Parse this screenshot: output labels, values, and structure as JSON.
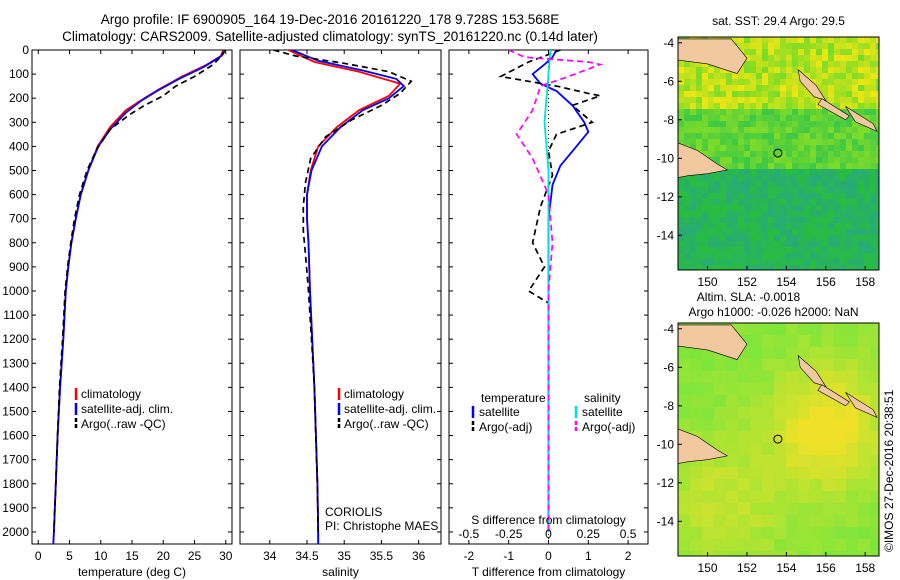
{
  "header": {
    "line1": "Argo profile: IF 6900905_164 19-Dec-2016 20161220_178 9.728S 153.568E",
    "line2": "Climatology: CARS2009. Satellite-adjusted climatology: synTS_20161220.nc (0.14d later)"
  },
  "colors": {
    "clim": "#ff0000",
    "sat": "#0000ff",
    "argo": "#000000",
    "sal_sat": "#00e0e0",
    "sal_argo": "#ff00ff"
  },
  "chart_data": [
    {
      "type": "line",
      "name": "temperature-profile",
      "xlabel": "temperature (deg C)",
      "xlim": [
        -1,
        31
      ],
      "ylim": [
        0,
        2050
      ],
      "xticks": [
        0,
        5,
        10,
        15,
        20,
        25,
        30
      ],
      "yticks": [
        0,
        100,
        200,
        300,
        400,
        500,
        600,
        700,
        800,
        900,
        1000,
        1100,
        1200,
        1300,
        1400,
        1500,
        1600,
        1700,
        1800,
        1900,
        2000
      ],
      "legend": [
        "climatology",
        "satellite-adj. clim.",
        "Argo(..raw -QC)"
      ],
      "series": [
        {
          "name": "climatology",
          "color": "#ff0000",
          "dash": false,
          "points": [
            [
              29.6,
              0
            ],
            [
              29.2,
              25
            ],
            [
              27,
              60
            ],
            [
              23,
              110
            ],
            [
              19.5,
              160
            ],
            [
              17,
              200
            ],
            [
              14,
              250
            ],
            [
              11.5,
              320
            ],
            [
              9.5,
              400
            ],
            [
              8,
              500
            ],
            [
              6.8,
              600
            ],
            [
              6,
              700
            ],
            [
              5.3,
              800
            ],
            [
              4.8,
              900
            ],
            [
              4.4,
              1000
            ],
            [
              4,
              1200
            ],
            [
              3.5,
              1400
            ],
            [
              3.1,
              1600
            ],
            [
              2.8,
              1800
            ],
            [
              2.5,
              2000
            ],
            [
              2.4,
              2050
            ]
          ]
        },
        {
          "name": "satellite-adj. clim.",
          "color": "#0000ff",
          "dash": false,
          "points": [
            [
              29.8,
              0
            ],
            [
              29.3,
              25
            ],
            [
              26.5,
              70
            ],
            [
              22.5,
              120
            ],
            [
              19,
              170
            ],
            [
              16.5,
              210
            ],
            [
              14,
              260
            ],
            [
              11.5,
              330
            ],
            [
              9.6,
              400
            ],
            [
              8,
              500
            ],
            [
              6.8,
              600
            ],
            [
              6,
              700
            ],
            [
              5.3,
              800
            ],
            [
              4.8,
              900
            ],
            [
              4.4,
              1000
            ],
            [
              4,
              1200
            ],
            [
              3.5,
              1400
            ],
            [
              3.1,
              1600
            ],
            [
              2.8,
              1800
            ],
            [
              2.5,
              2000
            ],
            [
              2.4,
              2050
            ]
          ]
        },
        {
          "name": "Argo(..raw -QC)",
          "color": "#000000",
          "dash": true,
          "points": [
            [
              29.9,
              0
            ],
            [
              29.5,
              20
            ],
            [
              28,
              60
            ],
            [
              25,
              110
            ],
            [
              22,
              150
            ],
            [
              20,
              190
            ],
            [
              17,
              230
            ],
            [
              14.5,
              270
            ],
            [
              11.5,
              330
            ],
            [
              9.4,
              410
            ],
            [
              7.8,
              500
            ],
            [
              6.6,
              600
            ],
            [
              5.8,
              700
            ],
            [
              5.2,
              800
            ],
            [
              4.7,
              900
            ],
            [
              4.3,
              1000
            ],
            [
              3.9,
              1200
            ],
            [
              3.4,
              1400
            ],
            [
              3.1,
              1600
            ],
            [
              2.8,
              1800
            ],
            [
              2.5,
              2000
            ]
          ]
        }
      ]
    },
    {
      "type": "line",
      "name": "salinity-profile",
      "xlabel": "salinity",
      "xlim": [
        33.6,
        36.3
      ],
      "ylim": [
        0,
        2050
      ],
      "xticks": [
        34,
        34.5,
        35,
        35.5,
        36
      ],
      "legend": [
        "climatology",
        "satellite-adj. clim.",
        "Argo(..raw -QC)"
      ],
      "annotation": [
        "CORIOLIS",
        "PI: Christophe MAES"
      ],
      "series": [
        {
          "name": "climatology",
          "color": "#ff0000",
          "dash": false,
          "points": [
            [
              34.25,
              0
            ],
            [
              34.6,
              50
            ],
            [
              35.2,
              90
            ],
            [
              35.75,
              140
            ],
            [
              35.6,
              190
            ],
            [
              35.2,
              250
            ],
            [
              34.9,
              320
            ],
            [
              34.65,
              400
            ],
            [
              34.55,
              500
            ],
            [
              34.5,
              600
            ],
            [
              34.5,
              700
            ],
            [
              34.52,
              800
            ],
            [
              34.54,
              1000
            ],
            [
              34.57,
              1200
            ],
            [
              34.6,
              1400
            ],
            [
              34.62,
              1600
            ],
            [
              34.64,
              1800
            ],
            [
              34.65,
              2000
            ],
            [
              34.65,
              2050
            ]
          ]
        },
        {
          "name": "satellite-adj. clim.",
          "color": "#0000ff",
          "dash": false,
          "points": [
            [
              34.3,
              0
            ],
            [
              34.65,
              45
            ],
            [
              35.25,
              85
            ],
            [
              35.7,
              120
            ],
            [
              35.8,
              150
            ],
            [
              35.6,
              200
            ],
            [
              35.25,
              250
            ],
            [
              34.95,
              320
            ],
            [
              34.7,
              400
            ],
            [
              34.56,
              500
            ],
            [
              34.5,
              600
            ],
            [
              34.5,
              700
            ],
            [
              34.52,
              800
            ],
            [
              34.54,
              1000
            ],
            [
              34.57,
              1200
            ],
            [
              34.6,
              1400
            ],
            [
              34.62,
              1600
            ],
            [
              34.64,
              1800
            ],
            [
              34.65,
              2000
            ],
            [
              34.65,
              2050
            ]
          ]
        },
        {
          "name": "Argo(..raw -QC)",
          "color": "#000000",
          "dash": true,
          "points": [
            [
              34.05,
              0
            ],
            [
              34.35,
              25
            ],
            [
              35.0,
              55
            ],
            [
              35.6,
              90
            ],
            [
              35.9,
              130
            ],
            [
              35.75,
              180
            ],
            [
              35.5,
              230
            ],
            [
              35.1,
              290
            ],
            [
              34.75,
              360
            ],
            [
              34.55,
              450
            ],
            [
              34.48,
              550
            ],
            [
              34.45,
              650
            ],
            [
              34.45,
              750
            ],
            [
              34.48,
              850
            ],
            [
              34.52,
              1000
            ],
            [
              34.56,
              1200
            ],
            [
              34.6,
              1400
            ],
            [
              34.62,
              1600
            ],
            [
              34.64,
              1800
            ],
            [
              34.65,
              2000
            ]
          ]
        }
      ]
    },
    {
      "type": "line",
      "name": "difference-profile",
      "xlabel": "T difference from climatology",
      "xlabel_top": "S difference from climatology",
      "xlim": [
        -2.5,
        2.5
      ],
      "ylim": [
        0,
        2050
      ],
      "xticks": [
        -2,
        -1,
        0,
        1,
        2
      ],
      "xticks_s": [
        "-0.5",
        "-0.25",
        "0",
        "0.25",
        "0.5"
      ],
      "legend_headers": [
        "temperature",
        "salinity"
      ],
      "legend": [
        "satellite",
        "Argo(-adj)",
        "satellite",
        "Argo(-adj)"
      ],
      "series": [
        {
          "name": "temperature satellite",
          "color": "#0000ff",
          "dash": false,
          "points": [
            [
              0.2,
              0
            ],
            [
              0.1,
              30
            ],
            [
              -0.1,
              60
            ],
            [
              -0.4,
              100
            ],
            [
              -0.2,
              140
            ],
            [
              0.2,
              170
            ],
            [
              0.6,
              230
            ],
            [
              0.9,
              300
            ],
            [
              1.0,
              340
            ],
            [
              0.7,
              400
            ],
            [
              0.3,
              480
            ],
            [
              0.1,
              560
            ],
            [
              0.0,
              700
            ],
            [
              0.0,
              1000
            ],
            [
              0.0,
              2000
            ]
          ]
        },
        {
          "name": "temperature Argo(-adj)",
          "color": "#000000",
          "dash": true,
          "points": [
            [
              0.3,
              0
            ],
            [
              -0.5,
              50
            ],
            [
              -1.2,
              110
            ],
            [
              0.2,
              150
            ],
            [
              1.0,
              180
            ],
            [
              1.3,
              190
            ],
            [
              0.6,
              230
            ],
            [
              1.1,
              300
            ],
            [
              0.2,
              350
            ],
            [
              0.0,
              420
            ],
            [
              0.1,
              520
            ],
            [
              -0.2,
              650
            ],
            [
              -0.4,
              800
            ],
            [
              -0.1,
              900
            ],
            [
              -0.5,
              1000
            ],
            [
              0.0,
              1050
            ],
            [
              0.0,
              2000
            ]
          ]
        },
        {
          "name": "salinity satellite",
          "color": "#00e0e0",
          "dash": false,
          "points": [
            [
              0.05,
              0
            ],
            [
              0.0,
              100
            ],
            [
              -0.05,
              200
            ],
            [
              -0.1,
              300
            ],
            [
              0.0,
              500
            ],
            [
              0.0,
              1000
            ],
            [
              0.0,
              2000
            ]
          ]
        },
        {
          "name": "salinity Argo(-adj)",
          "color": "#ff00ff",
          "dash": true,
          "points": [
            [
              -1.0,
              0
            ],
            [
              -0.6,
              30
            ],
            [
              1.0,
              50
            ],
            [
              1.3,
              60
            ],
            [
              0.5,
              110
            ],
            [
              -0.2,
              150
            ],
            [
              -0.4,
              250
            ],
            [
              -0.8,
              350
            ],
            [
              -0.4,
              450
            ],
            [
              0.0,
              600
            ],
            [
              0.1,
              800
            ],
            [
              0.0,
              1000
            ],
            [
              0.0,
              2000
            ]
          ]
        }
      ]
    }
  ],
  "maps": [
    {
      "name": "sst-map",
      "title": "sat. SST: 29.4 Argo: 29.5",
      "xticks": [
        150,
        152,
        154,
        156,
        158
      ],
      "yticks": [
        -4,
        -6,
        -8,
        -10,
        -12,
        -14
      ],
      "xlim": [
        148.5,
        158.7
      ],
      "ylim": [
        -15.8,
        -3.7
      ]
    },
    {
      "name": "sla-map",
      "title1": "Altim. SLA: -0.0018",
      "title2": "Argo h1000: -0.026 h2000: NaN",
      "xticks": [
        150,
        152,
        154,
        156,
        158
      ],
      "yticks": [
        -4,
        -6,
        -8,
        -10,
        -12,
        -14
      ],
      "xlim": [
        148.5,
        158.7
      ],
      "ylim": [
        -15.8,
        -3.7
      ]
    }
  ],
  "credit": "©IMOS 27-Dec-2016 20:38:51"
}
